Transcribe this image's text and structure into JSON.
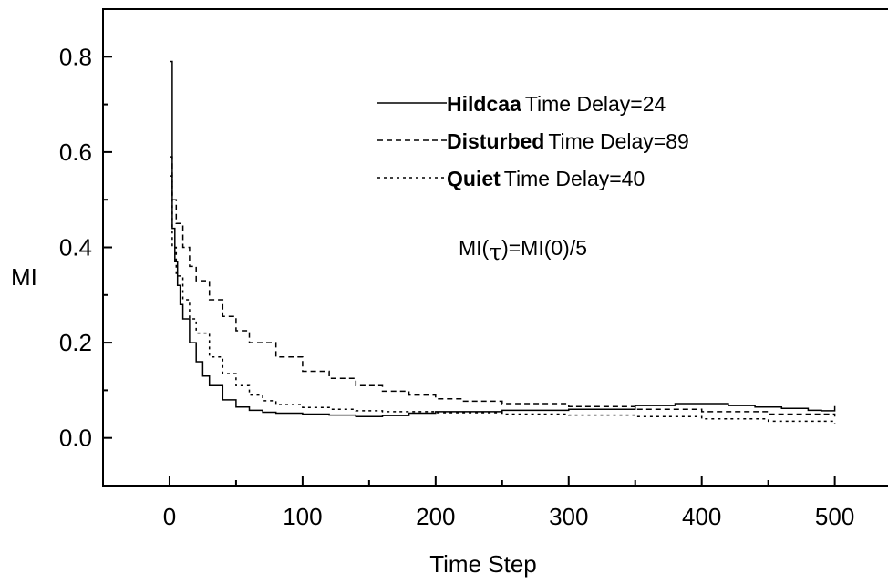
{
  "chart_data": {
    "type": "line",
    "title": "",
    "xlabel": "Time Step",
    "ylabel": "MI",
    "xlim": [
      -50,
      540
    ],
    "ylim": [
      -0.1,
      0.9
    ],
    "x_ticks": [
      0,
      100,
      200,
      300,
      400,
      500
    ],
    "x_tick_labels": [
      "0",
      "100",
      "200",
      "300",
      "400",
      "500"
    ],
    "y_ticks": [
      0.0,
      0.2,
      0.4,
      0.6,
      0.8
    ],
    "y_tick_labels": [
      "0.0",
      "0.2",
      "0.4",
      "0.6",
      "0.8"
    ],
    "grid": false,
    "legend_position": "top-right",
    "annotation": {
      "prefix": "MI(",
      "symbol": "τ",
      "suffix": ")=MI(0)/5"
    },
    "series": [
      {
        "name": "Hildcaa",
        "legend_suffix": "Time Delay=24",
        "style": "solid",
        "color": "#000000",
        "x": [
          0,
          2,
          4,
          6,
          8,
          10,
          15,
          20,
          25,
          30,
          40,
          50,
          60,
          70,
          80,
          100,
          120,
          140,
          160,
          180,
          200,
          250,
          300,
          350,
          380,
          400,
          420,
          440,
          460,
          480,
          490,
          500
        ],
        "y": [
          0.79,
          0.44,
          0.37,
          0.32,
          0.28,
          0.25,
          0.2,
          0.16,
          0.13,
          0.11,
          0.08,
          0.065,
          0.058,
          0.054,
          0.052,
          0.05,
          0.048,
          0.045,
          0.047,
          0.052,
          0.055,
          0.058,
          0.06,
          0.068,
          0.072,
          0.072,
          0.068,
          0.065,
          0.062,
          0.058,
          0.057,
          0.067
        ]
      },
      {
        "name": "Disturbed",
        "legend_suffix": "Time Delay=89",
        "style": "dashed",
        "color": "#000000",
        "x": [
          0,
          2,
          5,
          10,
          15,
          20,
          30,
          40,
          50,
          60,
          80,
          100,
          120,
          140,
          160,
          180,
          200,
          220,
          250,
          300,
          350,
          400,
          450,
          500
        ],
        "y": [
          0.59,
          0.5,
          0.45,
          0.4,
          0.36,
          0.33,
          0.29,
          0.255,
          0.225,
          0.2,
          0.17,
          0.14,
          0.125,
          0.11,
          0.098,
          0.09,
          0.082,
          0.077,
          0.072,
          0.066,
          0.06,
          0.055,
          0.05,
          0.045
        ]
      },
      {
        "name": "Quiet",
        "legend_suffix": "Time Delay=40",
        "style": "dotted",
        "color": "#000000",
        "x": [
          0,
          2,
          5,
          10,
          15,
          20,
          30,
          40,
          50,
          60,
          70,
          80,
          100,
          120,
          140,
          160,
          200,
          250,
          300,
          350,
          400,
          450,
          500
        ],
        "y": [
          0.55,
          0.4,
          0.34,
          0.29,
          0.25,
          0.22,
          0.17,
          0.135,
          0.11,
          0.09,
          0.078,
          0.07,
          0.064,
          0.06,
          0.057,
          0.055,
          0.053,
          0.05,
          0.048,
          0.045,
          0.04,
          0.035,
          0.03
        ]
      }
    ]
  }
}
